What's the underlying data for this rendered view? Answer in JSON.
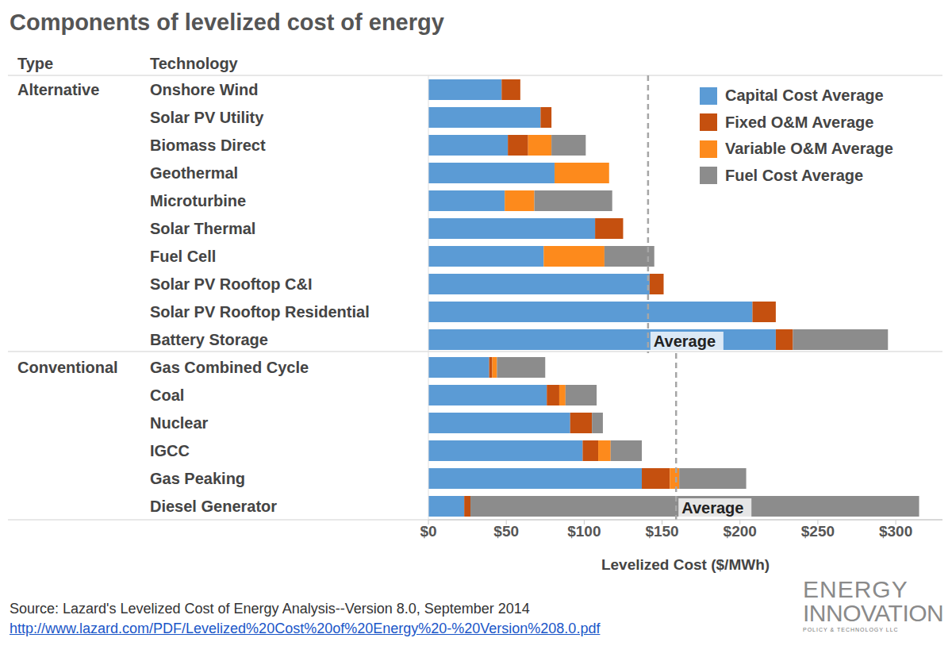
{
  "chart_data": {
    "type": "bar",
    "orientation": "horizontal",
    "stacked": true,
    "grid": false,
    "legend": "upper right",
    "title": "Components of levelized cost of energy",
    "column_headers": [
      "Type",
      "Technology"
    ],
    "groups": [
      {
        "name": "Alternative",
        "categories": [
          "Onshore Wind",
          "Solar PV Utility",
          "Biomass Direct",
          "Geothermal",
          "Microturbine",
          "Solar Thermal",
          "Fuel Cell",
          "Solar PV Rooftop C&I",
          "Solar PV Rooftop Residential",
          "Battery Storage"
        ],
        "average": 141,
        "average_label": "Average"
      },
      {
        "name": "Conventional",
        "categories": [
          "Gas Combined Cycle",
          "Coal",
          "Nuclear",
          "IGCC",
          "Gas Peaking",
          "Diesel Generator"
        ],
        "average": 159,
        "average_label": "Average"
      }
    ],
    "series": [
      {
        "name": "Capital Cost Average",
        "color": "#5b9bd5",
        "values": [
          47,
          72,
          51,
          81,
          49,
          107,
          74,
          142,
          208,
          223,
          39,
          76,
          91,
          99,
          137,
          23
        ]
      },
      {
        "name": "Fixed O&M Average",
        "color": "#c5500f",
        "values": [
          12,
          7,
          13,
          0,
          0,
          18,
          0,
          9,
          15,
          11,
          2,
          8,
          14,
          10,
          18,
          4
        ]
      },
      {
        "name": "Variable O&M Average",
        "color": "#fd8a1c",
        "values": [
          0,
          0,
          15,
          35,
          19,
          0,
          39,
          0,
          0,
          0,
          3,
          4,
          0,
          8,
          6,
          0
        ]
      },
      {
        "name": "Fuel Cost Average",
        "color": "#8c8c8c",
        "values": [
          0,
          0,
          22,
          0,
          50,
          0,
          32,
          0,
          0,
          61,
          31,
          20,
          7,
          20,
          43,
          288
        ]
      }
    ],
    "xlabel": "Levelized Cost ($/MWh)",
    "xlim": [
      0,
      330
    ],
    "xticks": [
      {
        "value": 0,
        "label": "$0"
      },
      {
        "value": 50,
        "label": "$50"
      },
      {
        "value": 100,
        "label": "$100"
      },
      {
        "value": 150,
        "label": "$150"
      },
      {
        "value": 200,
        "label": "$200"
      },
      {
        "value": 250,
        "label": "$250"
      },
      {
        "value": 300,
        "label": "$300"
      }
    ],
    "source": "Source: Lazard's Levelized Cost of Energy Analysis--Version 8.0, September 2014",
    "source_url": "http://www.lazard.com/PDF/Levelized%20Cost%20of%20Energy%20-%20Version%208.0.pdf",
    "logo": [
      "ENERGY",
      "INNOVATION",
      "POLICY & TECHNOLOGY LLC"
    ]
  }
}
